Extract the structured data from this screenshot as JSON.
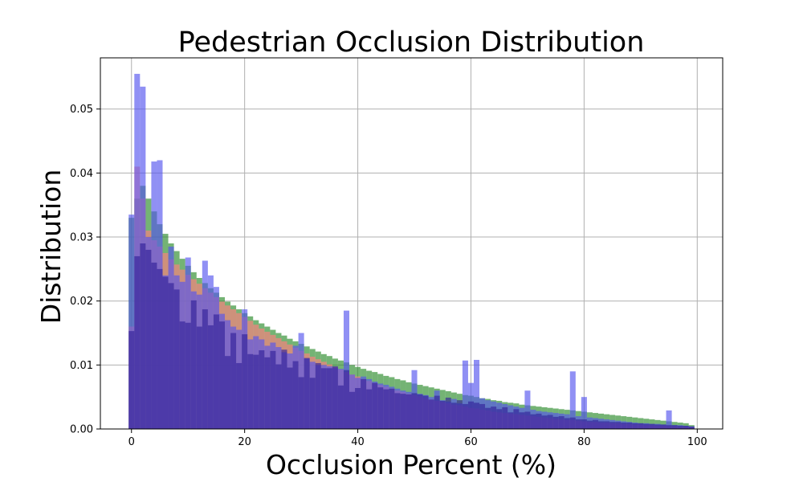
{
  "chart_data": {
    "type": "bar",
    "title": "Pedestrian Occlusion Distribution",
    "xlabel": "Occlusion Percent (%)",
    "ylabel": "Distribution",
    "xlim": [
      -5.5,
      104.5
    ],
    "ylim": [
      0,
      0.058
    ],
    "x_ticks": [
      0,
      20,
      40,
      60,
      80,
      100
    ],
    "y_ticks": [
      0.0,
      0.01,
      0.02,
      0.03,
      0.04,
      0.05
    ],
    "x_tick_labels": [
      "0",
      "20",
      "40",
      "60",
      "80",
      "100"
    ],
    "y_tick_labels": [
      "0.00",
      "0.01",
      "0.02",
      "0.03",
      "0.04",
      "0.05"
    ],
    "grid": true,
    "bin_start": -0.5,
    "bin_width": 1,
    "series": [
      {
        "color": "#2a8a2a",
        "values": [
          0.033,
          0.036,
          0.038,
          0.036,
          0.034,
          0.032,
          0.0305,
          0.029,
          0.0278,
          0.0266,
          0.0255,
          0.0245,
          0.0236,
          0.0228,
          0.022,
          0.0213,
          0.0206,
          0.0199,
          0.0193,
          0.0187,
          0.0181,
          0.0176,
          0.017,
          0.0165,
          0.016,
          0.0155,
          0.015,
          0.0146,
          0.0141,
          0.0137,
          0.0133,
          0.0129,
          0.0125,
          0.0121,
          0.0117,
          0.0114,
          0.011,
          0.0107,
          0.0104,
          0.01,
          0.0097,
          0.0094,
          0.0091,
          0.0089,
          0.0086,
          0.0083,
          0.0081,
          0.0078,
          0.0076,
          0.0073,
          0.0071,
          0.0069,
          0.0067,
          0.0065,
          0.0063,
          0.0061,
          0.0059,
          0.0057,
          0.0055,
          0.0053,
          0.0052,
          0.005,
          0.0048,
          0.0047,
          0.0045,
          0.0044,
          0.0042,
          0.0041,
          0.004,
          0.0038,
          0.0037,
          0.0036,
          0.0035,
          0.0034,
          0.0033,
          0.0032,
          0.0031,
          0.003,
          0.0029,
          0.0028,
          0.0027,
          0.0026,
          0.0025,
          0.0024,
          0.0023,
          0.0022,
          0.0021,
          0.002,
          0.0019,
          0.0018,
          0.0017,
          0.0016,
          0.0015,
          0.0014,
          0.0013,
          0.0012,
          0.0011,
          0.001,
          0.0009,
          0.0006
        ]
      },
      {
        "color": "#ff8080",
        "values": [
          0.016,
          0.041,
          0.036,
          0.031,
          0.0295,
          0.0285,
          0.0275,
          0.0265,
          0.0257,
          0.0249,
          0.0241,
          0.0234,
          0.0227,
          0.022,
          0.0213,
          0.0206,
          0.0199,
          0.0193,
          0.0187,
          0.0181,
          0.0175,
          0.0169,
          0.0163,
          0.0157,
          0.0152,
          0.0147,
          0.0142,
          0.0137,
          0.0132,
          0.0127,
          0.0122,
          0.0118,
          0.0113,
          0.0109,
          0.0105,
          0.0101,
          0.0097,
          0.0093,
          0.0089,
          0.0085,
          0.0082,
          0.0078,
          0.0075,
          0.0072,
          0.0069,
          0.0066,
          0.0063,
          0.006,
          0.0058,
          0.0055,
          0.0053,
          0.0051,
          0.0048,
          0.0046,
          0.0044,
          0.0042,
          0.004,
          0.0038,
          0.0037,
          0.0035,
          0.0033,
          0.0032,
          0.003,
          0.0029,
          0.0027,
          0.0026,
          0.0025,
          0.0024,
          0.0023,
          0.0022,
          0.0021,
          0.002,
          0.0019,
          0.0018,
          0.0017,
          0.0016,
          0.0015,
          0.0014,
          0.0014,
          0.0013,
          0.0012,
          0.0011,
          0.0011,
          0.001,
          0.001,
          0.0009,
          0.0009,
          0.0008,
          0.0008,
          0.0007,
          0.0007,
          0.0006,
          0.0006,
          0.0005,
          0.0005,
          0.0004,
          0.0004,
          0.0003,
          0.0003,
          0.0002
        ]
      },
      {
        "color": "#5555ee",
        "values": [
          0.0335,
          0.0555,
          0.0535,
          0.03,
          0.0418,
          0.042,
          0.024,
          0.0285,
          0.024,
          0.023,
          0.0268,
          0.0215,
          0.021,
          0.0263,
          0.024,
          0.0222,
          0.018,
          0.017,
          0.016,
          0.0155,
          0.0187,
          0.014,
          0.0145,
          0.014,
          0.013,
          0.0135,
          0.0128,
          0.012,
          0.0118,
          0.013,
          0.015,
          0.011,
          0.0105,
          0.01,
          0.01,
          0.0098,
          0.0096,
          0.0094,
          0.0185,
          0.0085,
          0.008,
          0.0082,
          0.0078,
          0.0074,
          0.0071,
          0.0069,
          0.0066,
          0.0063,
          0.006,
          0.0058,
          0.0092,
          0.0055,
          0.0053,
          0.005,
          0.006,
          0.0045,
          0.0043,
          0.0047,
          0.004,
          0.0107,
          0.0072,
          0.0108,
          0.0048,
          0.0045,
          0.0043,
          0.0041,
          0.0039,
          0.0037,
          0.0035,
          0.0033,
          0.006,
          0.003,
          0.0028,
          0.0027,
          0.0026,
          0.0025,
          0.0024,
          0.0023,
          0.009,
          0.002,
          0.005,
          0.0018,
          0.0017,
          0.0016,
          0.0015,
          0.0014,
          0.0013,
          0.0012,
          0.0011,
          0.001,
          0.0009,
          0.0009,
          0.0008,
          0.0008,
          0.0007,
          0.0029,
          0.0006,
          0.0006,
          0.0005,
          0.0004
        ]
      },
      {
        "color": "#332299",
        "values": [
          0.0153,
          0.027,
          0.029,
          0.028,
          0.026,
          0.025,
          0.0238,
          0.0228,
          0.0218,
          0.0168,
          0.0166,
          0.0201,
          0.016,
          0.0187,
          0.0162,
          0.0179,
          0.0168,
          0.0114,
          0.015,
          0.0103,
          0.0148,
          0.0117,
          0.0116,
          0.0123,
          0.0112,
          0.0122,
          0.0101,
          0.0124,
          0.0096,
          0.0106,
          0.0081,
          0.0111,
          0.008,
          0.0103,
          0.0095,
          0.0095,
          0.0098,
          0.0068,
          0.0092,
          0.0058,
          0.0064,
          0.0078,
          0.0062,
          0.0072,
          0.0065,
          0.0062,
          0.0063,
          0.0056,
          0.0055,
          0.0054,
          0.0056,
          0.0054,
          0.0052,
          0.0046,
          0.0052,
          0.0044,
          0.0049,
          0.0041,
          0.0045,
          0.0039,
          0.0043,
          0.0041,
          0.0039,
          0.0033,
          0.0035,
          0.0031,
          0.0034,
          0.0026,
          0.0031,
          0.0026,
          0.0027,
          0.0023,
          0.0024,
          0.0021,
          0.0022,
          0.0019,
          0.002,
          0.0017,
          0.0018,
          0.0015,
          0.0015,
          0.0013,
          0.0014,
          0.0012,
          0.0012,
          0.0011,
          0.0011,
          0.001,
          0.001,
          0.0009,
          0.0009,
          0.0008,
          0.0008,
          0.0007,
          0.0007,
          0.0006,
          0.0006,
          0.0005,
          0.0005,
          0.0004
        ]
      }
    ]
  }
}
